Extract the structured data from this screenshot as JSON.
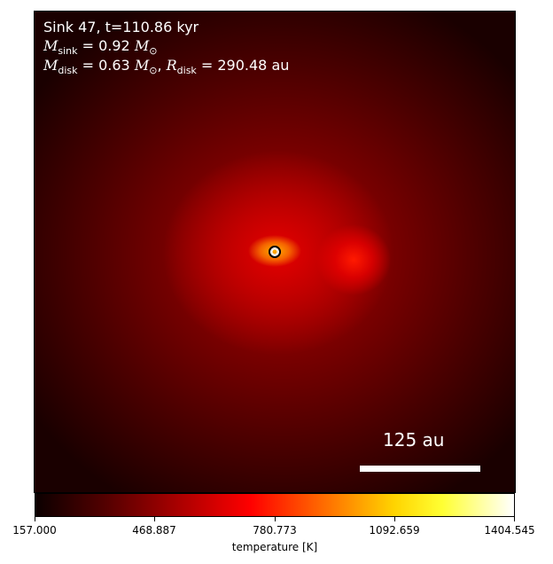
{
  "overlay": {
    "title": "Sink 47, t=110.86 kyr",
    "sink_mass_symbol": "M",
    "sink_mass_sub": "sink",
    "sink_mass_value": " = 0.92 ",
    "sun_symbol": "M",
    "sun_sub": "⊙",
    "disk_mass_symbol": "M",
    "disk_mass_sub": "disk",
    "disk_mass_value": " = 0.63 ",
    "disk_radius_symbol": "R",
    "disk_radius_sub": "disk",
    "disk_radius_value": " = 290.48 au",
    "comma": ", "
  },
  "scale_bar": {
    "label": "125 au"
  },
  "colorbar": {
    "label": "temperature [K]",
    "ticks": [
      "157.000",
      "468.887",
      "780.773",
      "1092.659",
      "1404.545"
    ],
    "cmap": "hot",
    "colors": [
      "#0b0000",
      "#aa0000",
      "#ff0000",
      "#ffd400",
      "#ffffff"
    ]
  }
}
